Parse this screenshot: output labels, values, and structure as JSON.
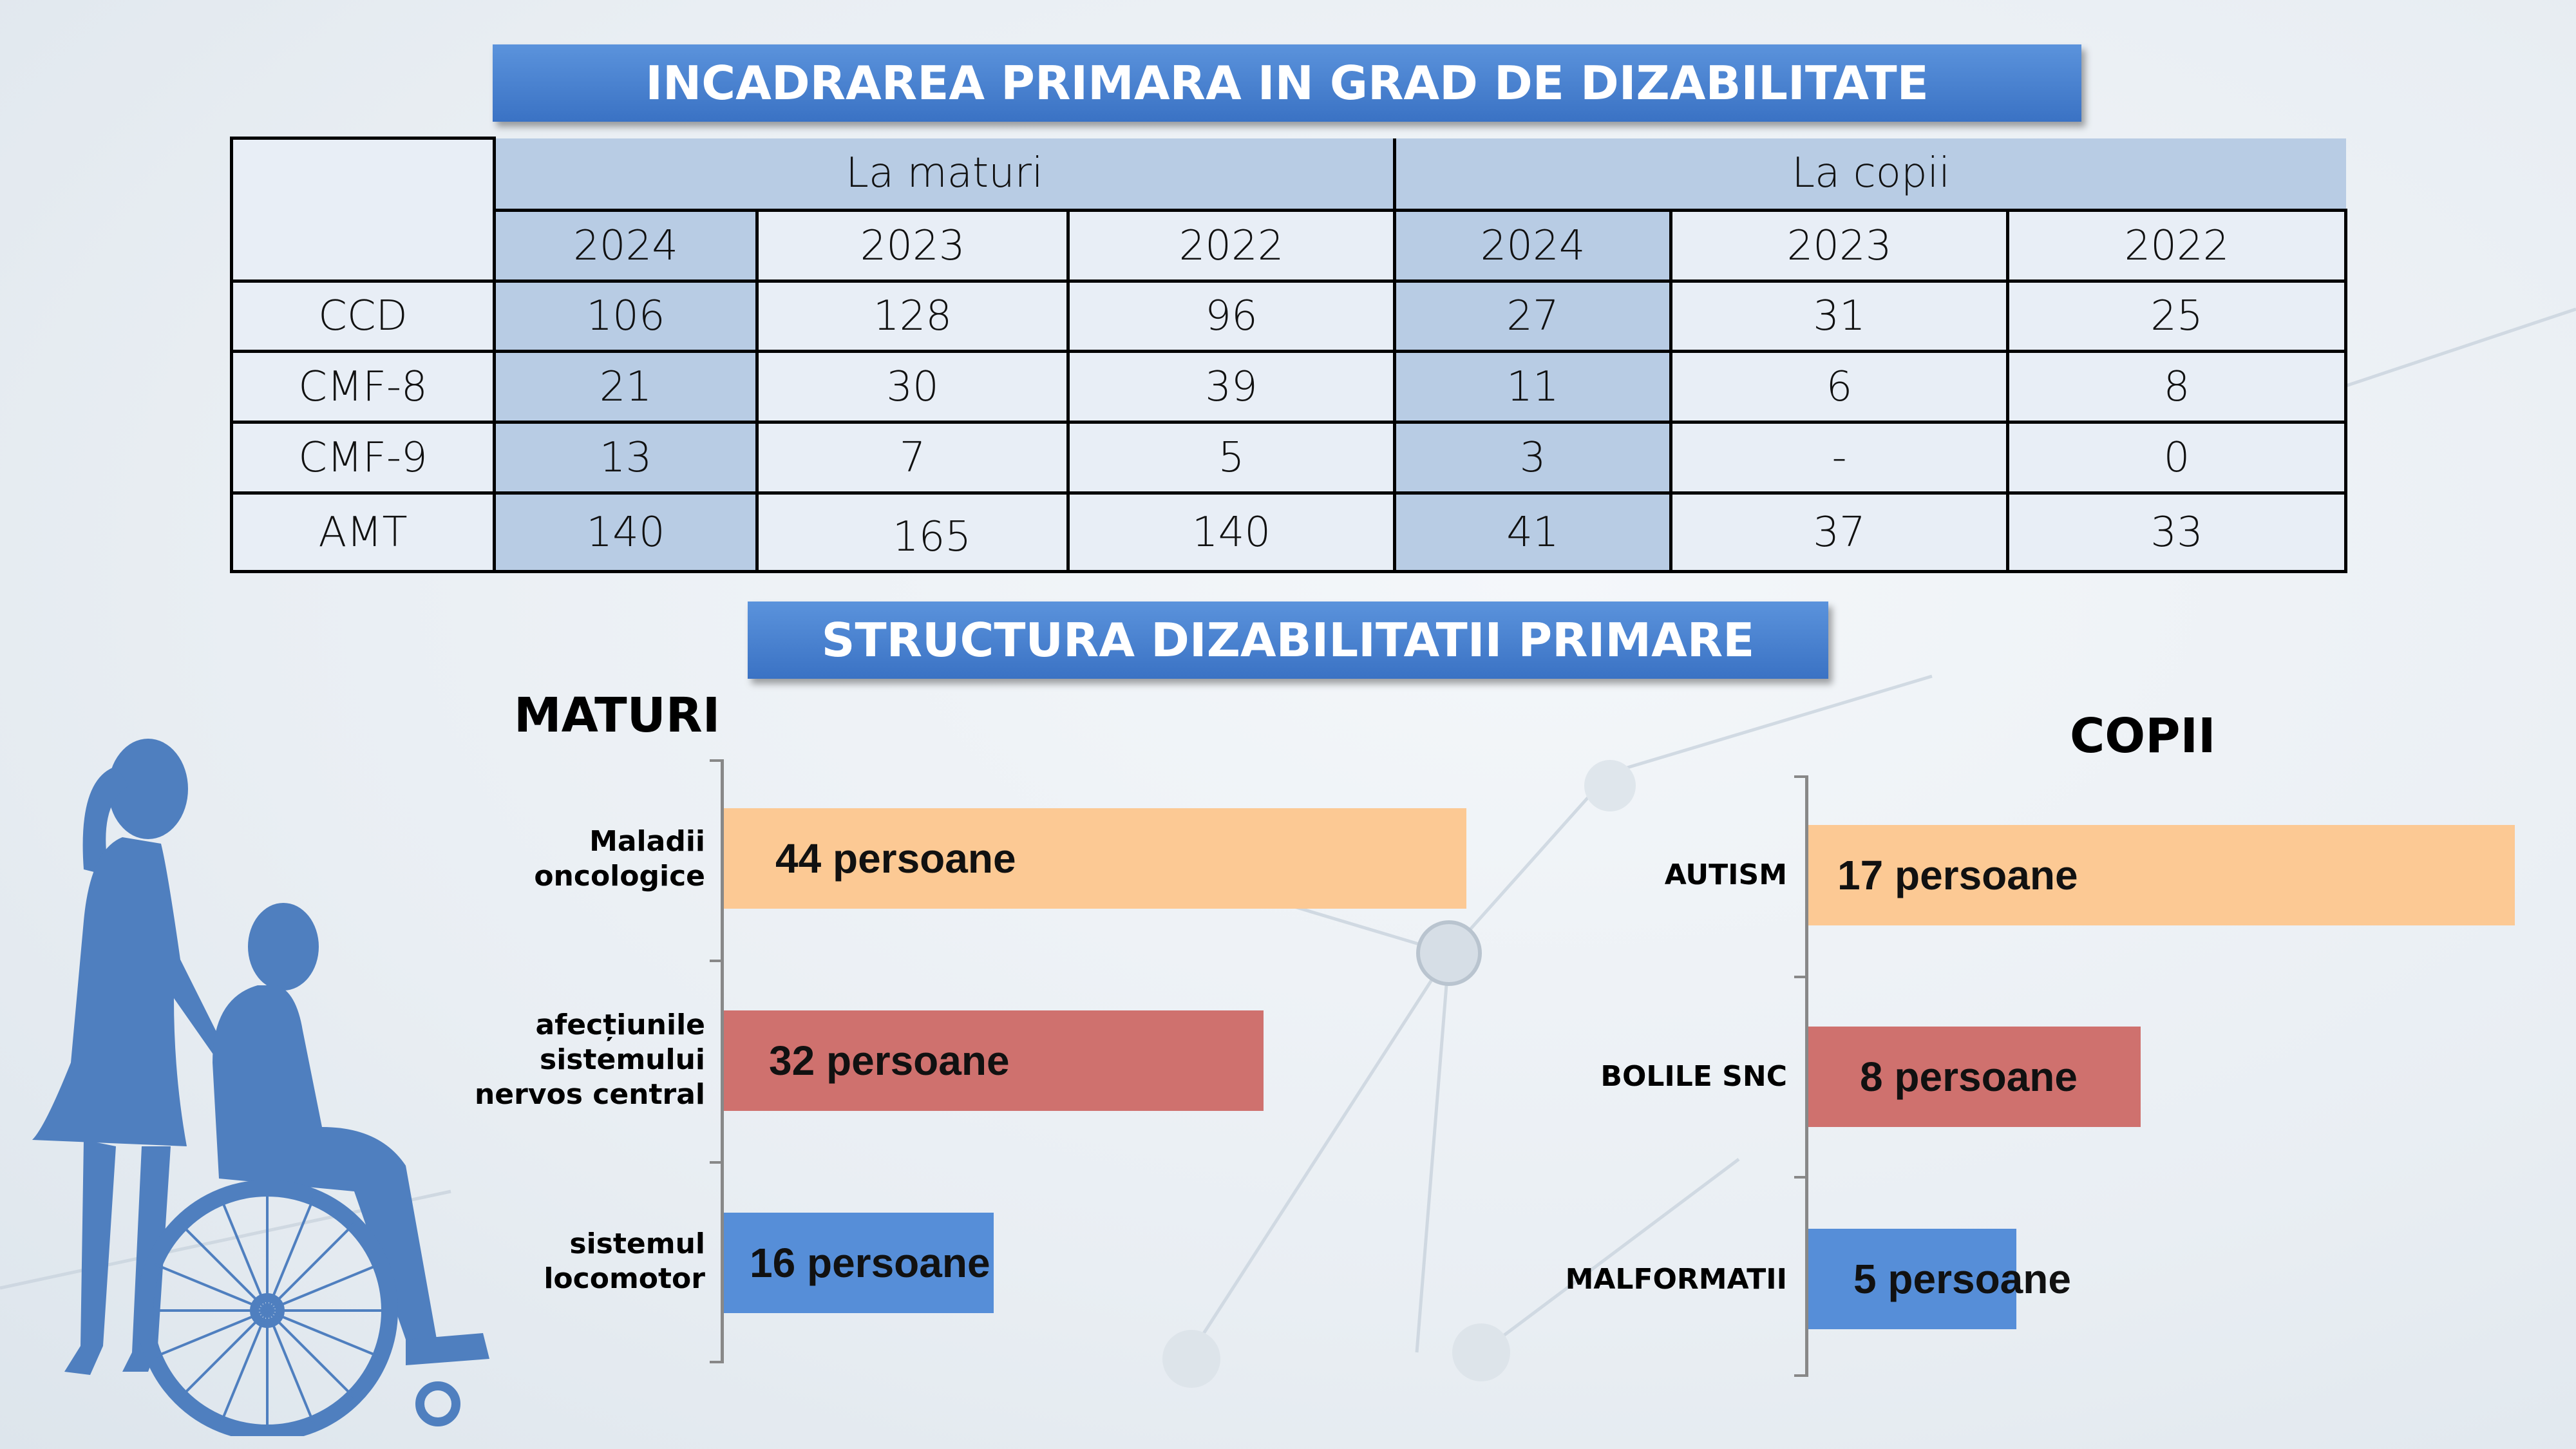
{
  "titles": {
    "main": "INCADRAREA PRIMARA IN GRAD DE DIZABILITATE",
    "structure": "STRUCTURA DIZABILITATII PRIMARE"
  },
  "table": {
    "groups": [
      "La maturi",
      "La copii"
    ],
    "years": [
      "2024",
      "2023",
      "2022",
      "2024",
      "2023",
      "2022"
    ],
    "rows": [
      {
        "label": "CCD",
        "values": [
          "106",
          "128",
          "96",
          "27",
          "31",
          "25"
        ]
      },
      {
        "label": "CMF-8",
        "values": [
          "21",
          "30",
          "39",
          "11",
          "6",
          "8"
        ]
      },
      {
        "label": "CMF-9",
        "values": [
          "13",
          "7",
          "5",
          "3",
          "-",
          "0"
        ]
      },
      {
        "label": "AMT",
        "values": [
          "140",
          "165",
          "140",
          "41",
          "37",
          "33"
        ]
      }
    ]
  },
  "chart_data": [
    {
      "type": "bar",
      "orientation": "horizontal",
      "title": "MATURI",
      "categories": [
        "Maladii oncologice",
        "afecțiunile sistemului nervos central",
        "sistemul locomotor"
      ],
      "values": [
        44,
        32,
        16
      ],
      "labels": [
        "44 persoane",
        "32 persoane",
        "16 persoane"
      ],
      "colors": [
        "#fcc994",
        "#cf716e",
        "#568ed8"
      ]
    },
    {
      "type": "bar",
      "orientation": "horizontal",
      "title": "COPII",
      "categories": [
        "AUTISM",
        "BOLILE SNC",
        "MALFORMATII"
      ],
      "values": [
        17,
        8,
        5
      ],
      "labels": [
        "17 persoane",
        "8 persoane",
        "5 persoane"
      ],
      "colors": [
        "#fcc994",
        "#cf716e",
        "#568ed8"
      ]
    }
  ]
}
